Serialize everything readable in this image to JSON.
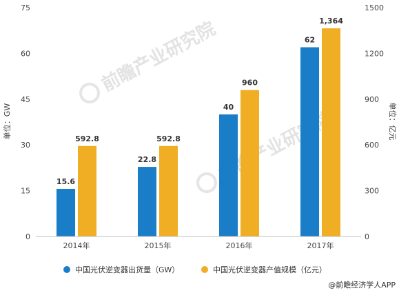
{
  "chart_data": {
    "type": "bar",
    "categories": [
      "2014年",
      "2015年",
      "2016年",
      "2017年"
    ],
    "series": [
      {
        "name": "中国光伏逆变器出货量（GW）",
        "axis": "left",
        "color": "#1a7dc8",
        "values": [
          15.6,
          22.8,
          40,
          62
        ],
        "labels": [
          "15.6",
          "22.8",
          "40",
          "62"
        ]
      },
      {
        "name": "中国光伏逆变器产值规模（亿元）",
        "axis": "right",
        "color": "#f0ae25",
        "values": [
          592.8,
          592.8,
          960,
          1364
        ],
        "labels": [
          "592.8",
          "592.8",
          "960",
          "1,364"
        ]
      }
    ],
    "y_left": {
      "label": "单位：GW",
      "ylim": [
        0,
        75
      ],
      "ticks": [
        "0",
        "15",
        "30",
        "45",
        "60",
        "75"
      ]
    },
    "y_right": {
      "label": "单位：亿元",
      "ylim": [
        0,
        1500
      ],
      "ticks": [
        "0",
        "300",
        "600",
        "900",
        "1200",
        "1500"
      ]
    },
    "grid": false,
    "legend": "bottom"
  },
  "watermark": {
    "name": "前瞻产业研究院"
  },
  "footer": {
    "source": "@前瞻经济学人APP"
  }
}
